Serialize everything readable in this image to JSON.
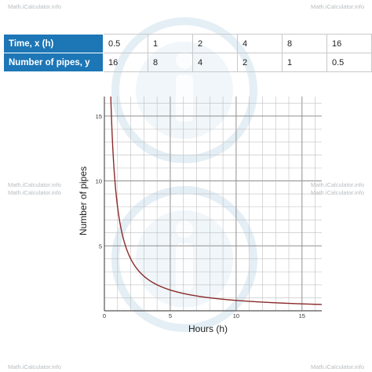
{
  "watermark": "Math.iCalculator.info",
  "table": {
    "row1_label": "Time, x (h)",
    "row2_label": "Number of pipes, y",
    "row1": [
      "0.5",
      "1",
      "2",
      "4",
      "8",
      "16"
    ],
    "row2": [
      "16",
      "8",
      "4",
      "2",
      "1",
      "0.5"
    ]
  },
  "colors": {
    "header_bg": "#1d76b6",
    "curve": "#8b2a2a",
    "grid": "#bfbfbf",
    "watermark": "#e4eef5"
  },
  "chart_data": {
    "type": "line",
    "title": "",
    "xlabel": "Hours (h)",
    "ylabel": "Number of pipes",
    "xlim": [
      0,
      16.5
    ],
    "ylim": [
      0,
      16.5
    ],
    "xticks": [
      "0",
      "5",
      "10",
      "15"
    ],
    "yticks": [
      "5",
      "10",
      "15"
    ],
    "grid": true,
    "series": [
      {
        "function": "y = 8 / x",
        "x": [
          0.5,
          1,
          2,
          4,
          8,
          16
        ],
        "y": [
          16,
          8,
          4,
          2,
          1,
          0.5
        ]
      }
    ]
  }
}
